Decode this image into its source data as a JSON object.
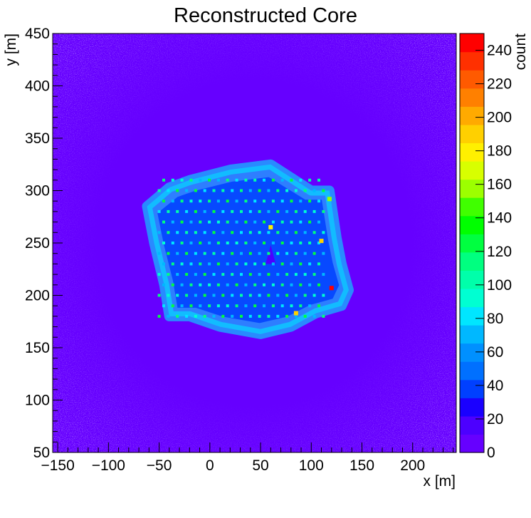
{
  "chart_data": {
    "type": "heatmap",
    "title": "Reconstructed Core",
    "xlabel": "x [m]",
    "ylabel": "y [m]",
    "zlabel": "count",
    "xlim": [
      -155,
      243
    ],
    "ylim": [
      50,
      450
    ],
    "zlim": [
      0,
      250
    ],
    "x_ticks": [
      -150,
      -100,
      -50,
      0,
      50,
      100,
      150,
      200
    ],
    "y_ticks": [
      50,
      100,
      150,
      200,
      250,
      300,
      350,
      400,
      450
    ],
    "z_ticks": [
      0,
      20,
      40,
      60,
      80,
      100,
      120,
      140,
      160,
      180,
      200,
      220,
      240
    ],
    "grid": false,
    "colorbar_placement": "right",
    "colormap": [
      "#6600ff",
      "#4c00ff",
      "#1a00ff",
      "#0040ff",
      "#0070ff",
      "#0090ff",
      "#00b8ff",
      "#00e6ff",
      "#00ffd2",
      "#00ffaa",
      "#00ff80",
      "#00ff40",
      "#00ff00",
      "#40ff00",
      "#9cff00",
      "#d8ff00",
      "#fff000",
      "#ffd000",
      "#ffaa00",
      "#ff8000",
      "#ff5a00",
      "#ff3000",
      "#ff0000"
    ],
    "background_level": 10,
    "array_region": {
      "outline_xy": [
        [
          -62,
          285
        ],
        [
          -40,
          303
        ],
        [
          -20,
          310
        ],
        [
          20,
          320
        ],
        [
          60,
          325
        ],
        [
          100,
          300
        ],
        [
          118,
          300
        ],
        [
          125,
          255
        ],
        [
          130,
          230
        ],
        [
          137,
          205
        ],
        [
          130,
          190
        ],
        [
          105,
          183
        ],
        [
          80,
          170
        ],
        [
          50,
          163
        ],
        [
          10,
          170
        ],
        [
          -20,
          180
        ],
        [
          -40,
          180
        ],
        [
          -45,
          210
        ],
        [
          -55,
          250
        ]
      ],
      "edge_level": 85,
      "interior_level": 35
    },
    "holes_xy": [
      [
        55,
        230
      ],
      [
        60,
        248
      ],
      [
        65,
        230
      ]
    ],
    "hotspots": [
      {
        "x": 120,
        "y": 207,
        "count": 240
      },
      {
        "x": 85,
        "y": 183,
        "count": 195
      },
      {
        "x": 110,
        "y": 252,
        "count": 185
      },
      {
        "x": 118,
        "y": 292,
        "count": 160
      },
      {
        "x": 60,
        "y": 265,
        "count": 175
      }
    ],
    "detector_grid": {
      "x_range": [
        -50,
        115
      ],
      "y_range": [
        180,
        318
      ],
      "x_spacing": 9,
      "y_spacing": 10,
      "peak_count": 125
    }
  }
}
